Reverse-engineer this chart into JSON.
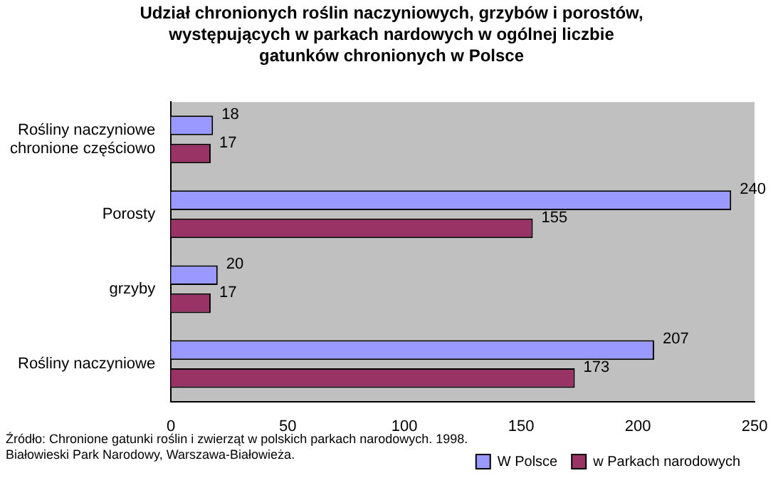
{
  "chart_data": {
    "type": "bar",
    "orientation": "horizontal",
    "title": "Udział chronionych roślin naczyniowych, grzybów i porostów, występujących w parkach nardowych w ogólnej liczbie gatunków chronionych w Polsce",
    "categories": [
      "Rośliny naczyniowe chronione częściowo",
      "Porosty",
      "grzyby",
      "Rośliny naczyniowe"
    ],
    "series": [
      {
        "name": "W Polsce",
        "color": "#9999ff",
        "values": [
          18,
          240,
          20,
          207
        ]
      },
      {
        "name": "w Parkach narodowych",
        "color": "#993366",
        "values": [
          17,
          155,
          17,
          173
        ]
      }
    ],
    "xlim": [
      0,
      250
    ],
    "xticks": [
      0,
      50,
      100,
      150,
      200,
      250
    ],
    "grid": false,
    "legend": "bottom right",
    "data_labels": true,
    "annotations": [
      "Źródło: Chronione gatunki roślin i zwierząt w polskich parkach narodowych. 1998. Białowieski Park Narodowy, Warszawa-Białowieża."
    ]
  }
}
